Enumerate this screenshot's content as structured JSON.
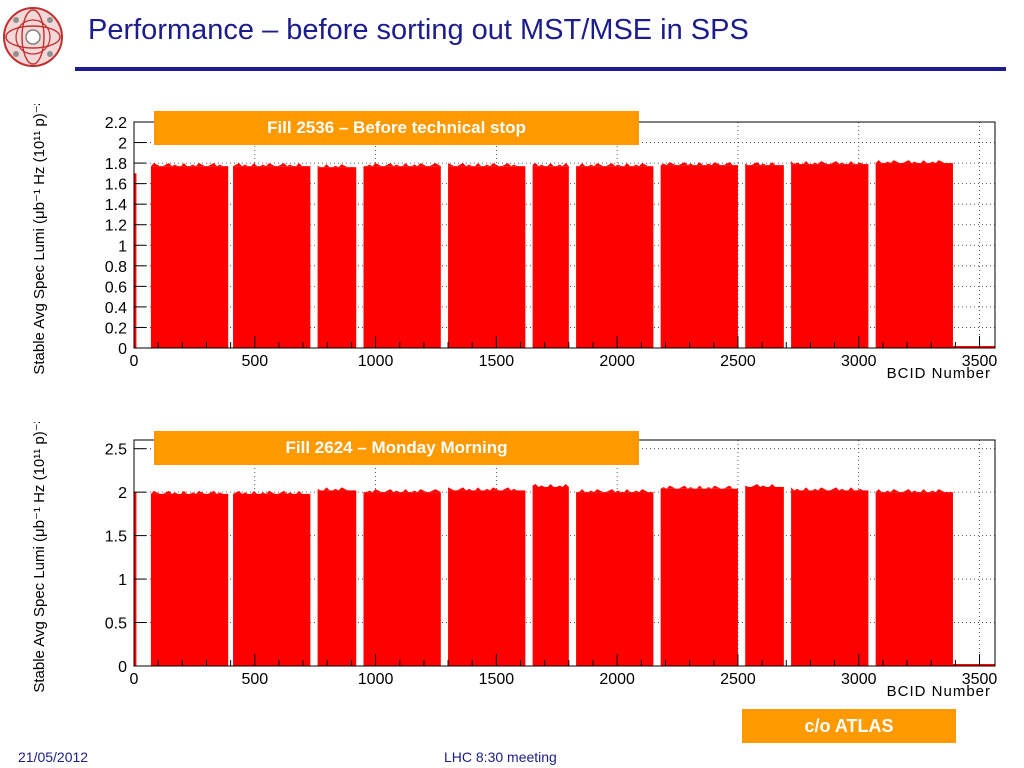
{
  "slide": {
    "title": "Performance – before sorting out MST/MSE in SPS",
    "logo_icon": "lhc-logo-icon",
    "footer_date": "21/05/2012",
    "footer_meeting": "LHC 8:30 meeting",
    "credit": "c/o ATLAS",
    "accent_color": "#1c1c8c",
    "box_color": "#ff9900"
  },
  "chart_data": [
    {
      "type": "bar",
      "annotation": "Fill 2536 – Before technical stop",
      "xlabel": "BCID Number",
      "ylabel": "Stable Avg Spec Lumi (μb⁻¹ Hz (10¹¹ p)⁻²)",
      "xlim": [
        0,
        3564
      ],
      "ylim": [
        0,
        2.2
      ],
      "xticks": [
        0,
        500,
        1000,
        1500,
        2000,
        2500,
        3000,
        3500
      ],
      "yticks": [
        0,
        0.2,
        0.4,
        0.6,
        0.8,
        1,
        1.2,
        1.4,
        1.6,
        1.8,
        2,
        2.2
      ],
      "grid": true,
      "color": "#ff0000",
      "trains": [
        {
          "start": 0,
          "end": 10,
          "value": 1.7
        },
        {
          "start": 70,
          "end": 390,
          "value": 1.77
        },
        {
          "start": 410,
          "end": 730,
          "value": 1.77
        },
        {
          "start": 760,
          "end": 920,
          "value": 1.76
        },
        {
          "start": 950,
          "end": 1270,
          "value": 1.77
        },
        {
          "start": 1300,
          "end": 1620,
          "value": 1.77
        },
        {
          "start": 1650,
          "end": 1800,
          "value": 1.77
        },
        {
          "start": 1830,
          "end": 2150,
          "value": 1.77
        },
        {
          "start": 2180,
          "end": 2500,
          "value": 1.78
        },
        {
          "start": 2530,
          "end": 2690,
          "value": 1.78
        },
        {
          "start": 2720,
          "end": 3040,
          "value": 1.79
        },
        {
          "start": 3070,
          "end": 3390,
          "value": 1.8
        }
      ]
    },
    {
      "type": "bar",
      "annotation": "Fill 2624 – Monday Morning",
      "xlabel": "BCID Number",
      "ylabel": "Stable Avg Spec Lumi (μb⁻¹ Hz (10¹¹ p)⁻²)",
      "xlim": [
        0,
        3564
      ],
      "ylim": [
        0,
        2.6
      ],
      "xticks": [
        0,
        500,
        1000,
        1500,
        2000,
        2500,
        3000,
        3500
      ],
      "yticks": [
        0,
        0.5,
        1,
        1.5,
        2,
        2.5
      ],
      "grid": true,
      "color": "#ff0000",
      "trains": [
        {
          "start": 0,
          "end": 10,
          "value": 2.0
        },
        {
          "start": 70,
          "end": 390,
          "value": 1.98
        },
        {
          "start": 410,
          "end": 730,
          "value": 1.98
        },
        {
          "start": 760,
          "end": 920,
          "value": 2.02
        },
        {
          "start": 950,
          "end": 1270,
          "value": 2.0
        },
        {
          "start": 1300,
          "end": 1620,
          "value": 2.02
        },
        {
          "start": 1650,
          "end": 1800,
          "value": 2.06
        },
        {
          "start": 1830,
          "end": 2150,
          "value": 2.0
        },
        {
          "start": 2180,
          "end": 2500,
          "value": 2.04
        },
        {
          "start": 2530,
          "end": 2690,
          "value": 2.06
        },
        {
          "start": 2720,
          "end": 3040,
          "value": 2.02
        },
        {
          "start": 3070,
          "end": 3390,
          "value": 2.0
        }
      ]
    }
  ]
}
